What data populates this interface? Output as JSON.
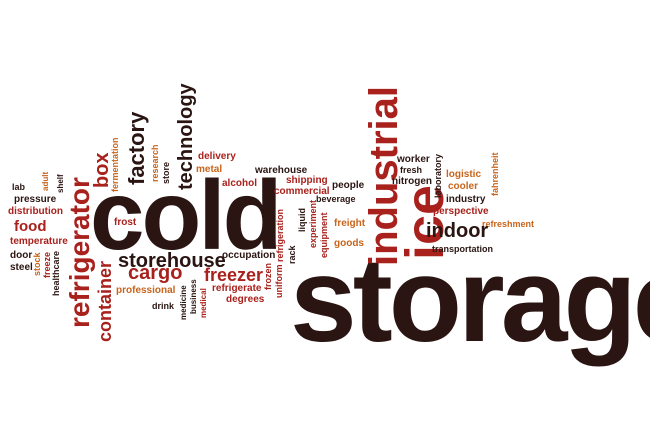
{
  "colors": {
    "dark": "#2a1512",
    "red": "#a9211c",
    "orange": "#c8641c",
    "white": "#ffffff"
  },
  "words": [
    {
      "text": "storage",
      "color": "dark"
    },
    {
      "text": "cold",
      "color": "dark"
    },
    {
      "text": "industrial",
      "color": "red"
    },
    {
      "text": "ice",
      "color": "red"
    },
    {
      "text": "refrigerator",
      "color": "red"
    },
    {
      "text": "technology",
      "color": "dark"
    },
    {
      "text": "factory",
      "color": "dark"
    },
    {
      "text": "box",
      "color": "red"
    },
    {
      "text": "fermentation",
      "color": "orange"
    },
    {
      "text": "research",
      "color": "orange"
    },
    {
      "text": "store",
      "color": "dark"
    },
    {
      "text": "delivery",
      "color": "red"
    },
    {
      "text": "metal",
      "color": "orange"
    },
    {
      "text": "alcohol",
      "color": "red"
    },
    {
      "text": "warehouse",
      "color": "dark"
    },
    {
      "text": "shipping",
      "color": "red"
    },
    {
      "text": "commercial",
      "color": "red"
    },
    {
      "text": "beverage",
      "color": "dark"
    },
    {
      "text": "people",
      "color": "dark"
    },
    {
      "text": "freight",
      "color": "orange"
    },
    {
      "text": "goods",
      "color": "orange"
    },
    {
      "text": "worker",
      "color": "dark"
    },
    {
      "text": "fresh",
      "color": "dark"
    },
    {
      "text": "nitrogen",
      "color": "dark"
    },
    {
      "text": "laboratory",
      "color": "dark"
    },
    {
      "text": "logistic",
      "color": "orange"
    },
    {
      "text": "cooler",
      "color": "orange"
    },
    {
      "text": "industry",
      "color": "dark"
    },
    {
      "text": "fahrenheit",
      "color": "orange"
    },
    {
      "text": "perspective",
      "color": "red"
    },
    {
      "text": "refreshment",
      "color": "orange"
    },
    {
      "text": "indoor",
      "color": "dark"
    },
    {
      "text": "transportation",
      "color": "dark"
    },
    {
      "text": "lab",
      "color": "dark"
    },
    {
      "text": "adult",
      "color": "orange"
    },
    {
      "text": "shelf",
      "color": "dark"
    },
    {
      "text": "pressure",
      "color": "dark"
    },
    {
      "text": "distribution",
      "color": "red"
    },
    {
      "text": "food",
      "color": "red"
    },
    {
      "text": "temperature",
      "color": "red"
    },
    {
      "text": "door",
      "color": "dark"
    },
    {
      "text": "steel",
      "color": "dark"
    },
    {
      "text": "stock",
      "color": "orange"
    },
    {
      "text": "freeze",
      "color": "red"
    },
    {
      "text": "healthcare",
      "color": "dark"
    },
    {
      "text": "frost",
      "color": "red"
    },
    {
      "text": "storehouse",
      "color": "dark"
    },
    {
      "text": "container",
      "color": "red"
    },
    {
      "text": "cargo",
      "color": "red"
    },
    {
      "text": "professional",
      "color": "orange"
    },
    {
      "text": "freezer",
      "color": "red"
    },
    {
      "text": "occupation",
      "color": "dark"
    },
    {
      "text": "refrigerate",
      "color": "red"
    },
    {
      "text": "degrees",
      "color": "red"
    },
    {
      "text": "drink",
      "color": "dark"
    },
    {
      "text": "medicine",
      "color": "dark"
    },
    {
      "text": "business",
      "color": "dark"
    },
    {
      "text": "medical",
      "color": "red"
    },
    {
      "text": "frozen",
      "color": "red"
    },
    {
      "text": "uniform",
      "color": "red"
    },
    {
      "text": "refrigeration",
      "color": "red"
    },
    {
      "text": "rack",
      "color": "dark"
    },
    {
      "text": "liquid",
      "color": "dark"
    },
    {
      "text": "experiment",
      "color": "red"
    },
    {
      "text": "equipment",
      "color": "red"
    }
  ]
}
